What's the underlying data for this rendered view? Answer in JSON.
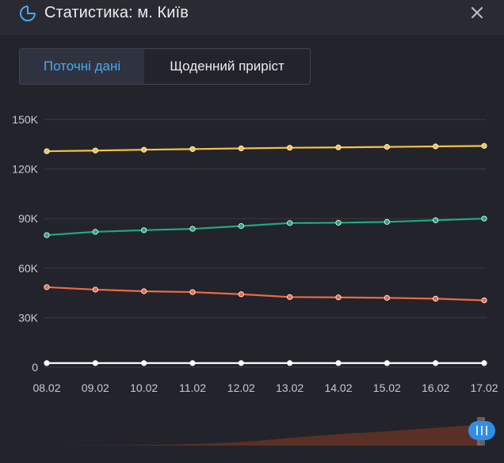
{
  "header": {
    "title": "Статистика: м. Київ",
    "icon": "pie-chart-icon",
    "close_icon": "close-icon"
  },
  "tabs": [
    {
      "label": "Поточні дані",
      "active": true
    },
    {
      "label": "Щоденний приріст",
      "active": false
    }
  ],
  "colors": {
    "background": "#23232b",
    "header": "#2a2a33",
    "accent": "#4aa8f0",
    "grid": "#3b3b45",
    "axis_text": "#c9c9d1",
    "navigator_fill": "#5a3026"
  },
  "chart_data": {
    "type": "line",
    "categories": [
      "08.02",
      "09.02",
      "10.02",
      "11.02",
      "12.02",
      "13.02",
      "14.02",
      "15.02",
      "16.02",
      "17.02"
    ],
    "y_tick_labels": [
      "0",
      "30K",
      "60K",
      "90K",
      "120K",
      "150K"
    ],
    "y_ticks": [
      0,
      30000,
      60000,
      90000,
      120000,
      150000
    ],
    "ylim": [
      0,
      150000
    ],
    "grid": true,
    "legend": "none",
    "series": [
      {
        "color": "#f5c242",
        "values": [
          130800,
          131200,
          131700,
          132100,
          132500,
          132900,
          133100,
          133400,
          133700,
          134000
        ]
      },
      {
        "color": "#1faa7c",
        "values": [
          80000,
          82000,
          83000,
          83800,
          85500,
          87300,
          87500,
          88000,
          89000,
          90000
        ]
      },
      {
        "color": "#ee6a46",
        "values": [
          48500,
          47000,
          46000,
          45500,
          44200,
          42500,
          42300,
          42000,
          41500,
          40500
        ]
      },
      {
        "color": "#ffffff",
        "values": [
          2500,
          2500,
          2500,
          2500,
          2500,
          2500,
          2500,
          2500,
          2500,
          2500
        ]
      }
    ],
    "navigator": {
      "profile": [
        0,
        0.3,
        0.6,
        1.0,
        1.5,
        2.2,
        3.2,
        4.6,
        6.6,
        9.2,
        12.5,
        17,
        23,
        29,
        35,
        40,
        45,
        49,
        53,
        58,
        63,
        68,
        73,
        77
      ],
      "handle_icon": "range-handle-icon"
    }
  }
}
